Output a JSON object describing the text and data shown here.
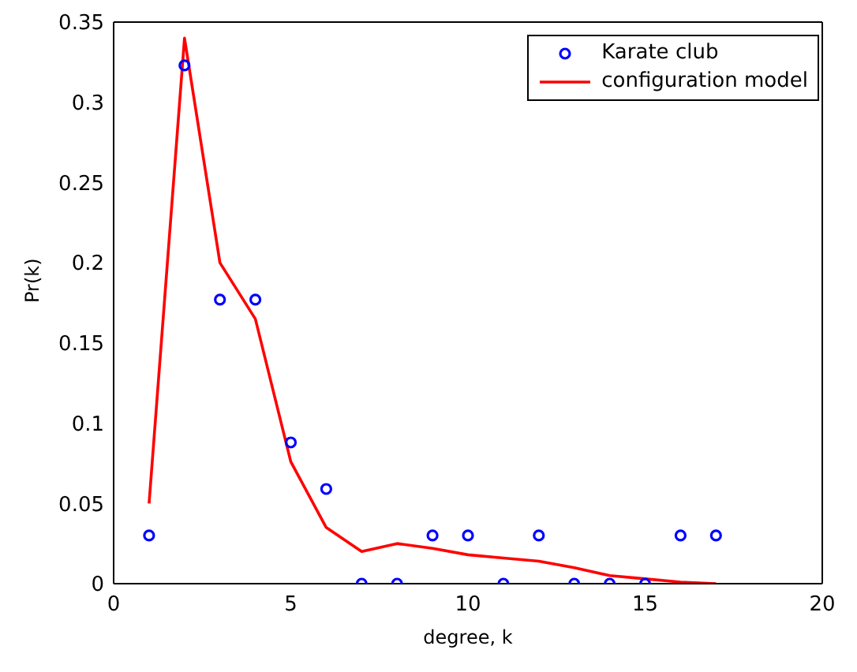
{
  "chart_data": {
    "type": "scatter",
    "xlabel": "degree, k",
    "ylabel": "Pr(k)",
    "x": [
      1,
      2,
      3,
      4,
      5,
      6,
      7,
      8,
      9,
      10,
      11,
      12,
      13,
      14,
      15,
      16,
      17
    ],
    "series": [
      {
        "name": "Karate club",
        "color": "#0000ff",
        "marker": "circle",
        "values": [
          0.03,
          0.323,
          0.177,
          0.177,
          0.088,
          0.059,
          0,
          0,
          0.03,
          0.03,
          0,
          0.03,
          0,
          0,
          0,
          0.03,
          0.03
        ]
      },
      {
        "name": "configuration model",
        "type": "line",
        "color": "#ff0000",
        "marker": "none",
        "line_style": "solid",
        "values": [
          0.05,
          0.34,
          0.2,
          0.165,
          0.076,
          0.035,
          0.02,
          0.025,
          0.022,
          0.018,
          0.016,
          0.014,
          0.01,
          0.005,
          0.003,
          0.001,
          0
        ]
      }
    ],
    "xlim": [
      0,
      20
    ],
    "xticks": [
      0,
      5,
      10,
      15,
      20
    ],
    "ylim": [
      0,
      0.35
    ],
    "yticks": [
      0,
      0.05,
      0.1,
      0.15,
      0.2,
      0.25,
      0.3,
      0.35
    ],
    "grid": false,
    "legend": "top right"
  }
}
